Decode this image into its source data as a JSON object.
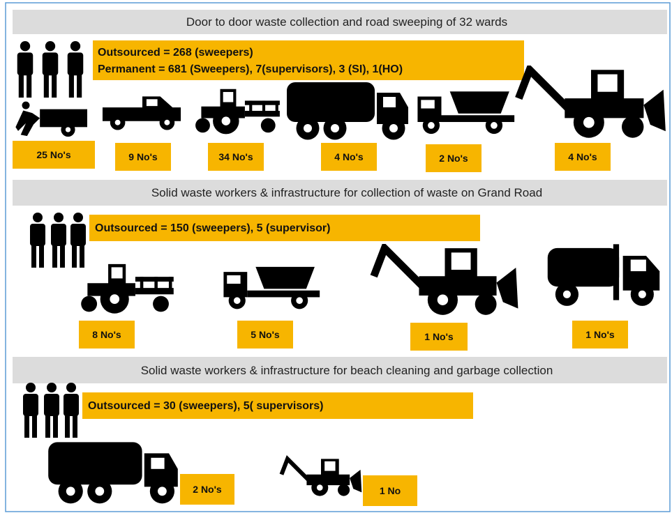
{
  "sections": [
    {
      "title": "Door to door waste collection and road sweeping of 32 wards",
      "staff": [
        "Outsourced = 268 (sweepers)",
        "Permanent = 681 (Sweepers), 7(supervisors), 3 (SI), 1(HO)"
      ],
      "counts": [
        "25 No's",
        "9 No's",
        "34 No's",
        "4 No's",
        "2 No's",
        "4 No's"
      ]
    },
    {
      "title": "Solid waste workers & infrastructure for collection of waste on Grand Road",
      "staff": [
        "Outsourced = 150 (sweepers), 5 (supervisor)"
      ],
      "counts": [
        "8 No's",
        "5 No's",
        "1 No's",
        "1 No's"
      ]
    },
    {
      "title": "Solid waste workers & infrastructure for beach cleaning and garbage collection",
      "staff": [
        "Outsourced = 30 (sweepers), 5( supervisors)"
      ],
      "counts": [
        "2 No's",
        "1 No"
      ]
    }
  ]
}
